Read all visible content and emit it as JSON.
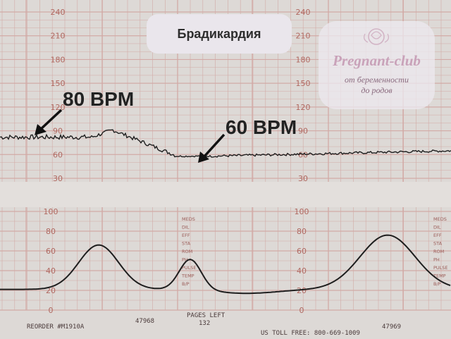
{
  "title": "Брадикардия",
  "logo": {
    "name": "Pregnant-club",
    "line1": "от беременности",
    "line2": "до родов"
  },
  "annotations": {
    "bpm80": "80 BPM",
    "bpm60": "60 BPM"
  },
  "fhr_scale_left": [
    "240",
    "210",
    "180",
    "150",
    "120",
    "90",
    "60",
    "30"
  ],
  "fhr_scale_right": [
    "240",
    "210",
    "180",
    "150",
    "120",
    "90",
    "60",
    "30"
  ],
  "uc_scale_left": [
    "100",
    "80",
    "60",
    "40",
    "20",
    "0"
  ],
  "uc_scale_right": [
    "100",
    "80",
    "60",
    "40",
    "20",
    "0"
  ],
  "side_labels_mid": [
    "MEDS",
    "DIL",
    "EFF",
    "STA",
    "ROM",
    "PH",
    "PULSE",
    "TEMP",
    "B/P"
  ],
  "side_labels_right": [
    "MEDS",
    "DIL",
    "EFF",
    "STA",
    "ROM",
    "PH",
    "PULSE",
    "TEMP",
    "B/P"
  ],
  "footer": {
    "reorder": "REORDER #M1910A",
    "page1": "47968",
    "pages_left_label": "PAGES LEFT",
    "pages_left_value": "132",
    "toll_free": "US TOLL FREE: 800-669-1009",
    "page2": "47969"
  },
  "colors": {
    "paper": "#ddd9d6",
    "grid": "#d2aaa6",
    "ink": "#1e1e1e"
  }
}
